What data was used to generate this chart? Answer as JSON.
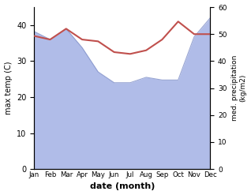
{
  "months": [
    "Jan",
    "Feb",
    "Mar",
    "Apr",
    "May",
    "Jun",
    "Jul",
    "Aug",
    "Sep",
    "Oct",
    "Nov",
    "Dec"
  ],
  "temp": [
    37,
    36,
    39,
    36,
    35.5,
    32.5,
    32,
    33,
    36,
    41,
    37.5,
    37.5
  ],
  "precip": [
    51,
    48,
    52,
    45,
    36,
    32,
    32,
    34,
    33,
    33,
    49,
    56
  ],
  "temp_color": "#c0504d",
  "precip_fill_color": "#b0bce8",
  "precip_line_color": "#8090c8",
  "ylabel_left": "max temp (C)",
  "ylabel_right": "med. precipitation\n(kg/m2)",
  "xlabel": "date (month)",
  "ylim_left": [
    0,
    45
  ],
  "ylim_right": [
    0,
    60
  ],
  "yticks_left": [
    0,
    10,
    20,
    30,
    40
  ],
  "yticks_right": [
    0,
    10,
    20,
    30,
    40,
    50,
    60
  ],
  "bg_color": "#ffffff"
}
